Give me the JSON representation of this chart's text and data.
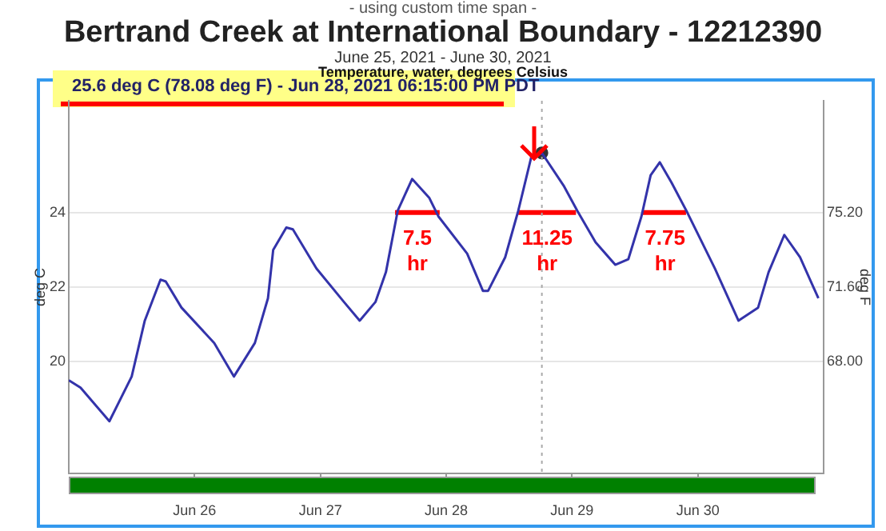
{
  "chart_data": {
    "type": "line",
    "title": "Bertrand Creek at International Boundary - 12212390",
    "subtitle": "June 25, 2021 - June 30, 2021",
    "ylabel": "deg C",
    "y2label": "deg F",
    "annotations": [
      "- using custom time span -",
      "Temperature, water, degrees Celsius",
      "25.6 deg C (78.08 deg F) - Jun 28, 2021 06:15:00 PM PDT",
      {
        "text": "7.5 hr",
        "x": "2021-06-27T18:30",
        "y": 24
      },
      {
        "text": "11.25 hr",
        "x": "2021-06-28T19:15",
        "y": 24
      },
      {
        "text": "7.75 hr",
        "x": "2021-06-29T17:45",
        "y": 24
      }
    ],
    "x": [
      "2021-06-25T00:00",
      "2021-06-25T02:15",
      "2021-06-25T07:45",
      "2021-06-25T12:00",
      "2021-06-25T14:30",
      "2021-06-25T17:30",
      "2021-06-25T18:30",
      "2021-06-25T21:30",
      "2021-06-26T03:45",
      "2021-06-26T07:30",
      "2021-06-26T11:30",
      "2021-06-26T14:00",
      "2021-06-26T15:00",
      "2021-06-26T17:30",
      "2021-06-26T18:45",
      "2021-06-26T23:15",
      "2021-06-27T04:30",
      "2021-06-27T07:30",
      "2021-06-27T10:30",
      "2021-06-27T12:30",
      "2021-06-27T14:45",
      "2021-06-27T17:30",
      "2021-06-27T20:45",
      "2021-06-27T22:30",
      "2021-06-28T04:00",
      "2021-06-28T07:00",
      "2021-06-28T08:00",
      "2021-06-28T11:15",
      "2021-06-28T13:45",
      "2021-06-28T16:15",
      "2021-06-28T18:15",
      "2021-06-28T22:30",
      "2021-06-29T01:00",
      "2021-06-29T04:30",
      "2021-06-29T08:15",
      "2021-06-29T10:45",
      "2021-06-29T13:15",
      "2021-06-29T15:00",
      "2021-06-29T16:45",
      "2021-06-29T19:00",
      "2021-06-29T22:00",
      "2021-06-30T03:15",
      "2021-06-30T07:45",
      "2021-06-30T11:30",
      "2021-06-30T13:30",
      "2021-06-30T16:30",
      "2021-06-30T19:30",
      "2021-06-30T23:00"
    ],
    "series": [
      {
        "color": "#3333aa",
        "values": [
          19.5,
          19.3,
          18.4,
          19.6,
          21.1,
          22.2,
          22.15,
          21.45,
          20.5,
          19.6,
          20.5,
          21.7,
          23.0,
          23.6,
          23.55,
          22.5,
          21.6,
          21.1,
          21.6,
          22.4,
          24.05,
          24.9,
          24.4,
          23.9,
          22.9,
          21.9,
          21.9,
          22.8,
          24.05,
          25.5,
          25.6,
          24.7,
          24.05,
          23.2,
          22.6,
          22.75,
          23.9,
          25.0,
          25.35,
          24.8,
          24.0,
          22.5,
          21.1,
          21.45,
          22.4,
          23.4,
          22.8,
          21.7
        ]
      },
      {
        "type": "line",
        "color": "#ff0000",
        "x": [
          "2021-06-27T14:15",
          "2021-06-27T22:45"
        ],
        "values": [
          24,
          24
        ]
      },
      {
        "type": "line",
        "color": "#ff0000",
        "x": [
          "2021-06-28T13:45",
          "2021-06-29T00:45"
        ],
        "values": [
          24,
          24
        ]
      },
      {
        "type": "line",
        "color": "#ff0000",
        "x": [
          "2021-06-29T13:30",
          "2021-06-29T21:45"
        ],
        "values": [
          24,
          24
        ]
      },
      {
        "type": "scatter",
        "marker": "circle",
        "color": "#333333",
        "x": [
          "2021-06-28T18:15"
        ],
        "values": [
          25.6
        ]
      }
    ],
    "xlim": [
      "2021-06-25T00:00",
      "2021-07-01T00:00"
    ],
    "xticks": [
      {
        "value": "2021-06-26",
        "label": "Jun 26"
      },
      {
        "value": "2021-06-27",
        "label": "Jun 27"
      },
      {
        "value": "2021-06-28",
        "label": "Jun 28"
      },
      {
        "value": "2021-06-29",
        "label": "Jun 29"
      },
      {
        "value": "2021-06-30",
        "label": "Jun 30"
      }
    ],
    "ylim": [
      17,
      27
    ],
    "yticks": [
      20,
      22,
      24
    ],
    "y2lim": [
      62.6,
      80.6
    ],
    "y2ticks": [
      {
        "value": 68,
        "label": "68.00"
      },
      {
        "value": 71.6,
        "label": "71.60"
      },
      {
        "value": 75.2,
        "label": "75.20"
      }
    ],
    "ref_lines": [
      {
        "axis": "x",
        "value": "2021-06-28T18:15",
        "color": "#aaaaaa",
        "line_style": "dotted"
      }
    ],
    "grid": "y",
    "legend": false,
    "marker": "none",
    "line_style": "solid"
  }
}
